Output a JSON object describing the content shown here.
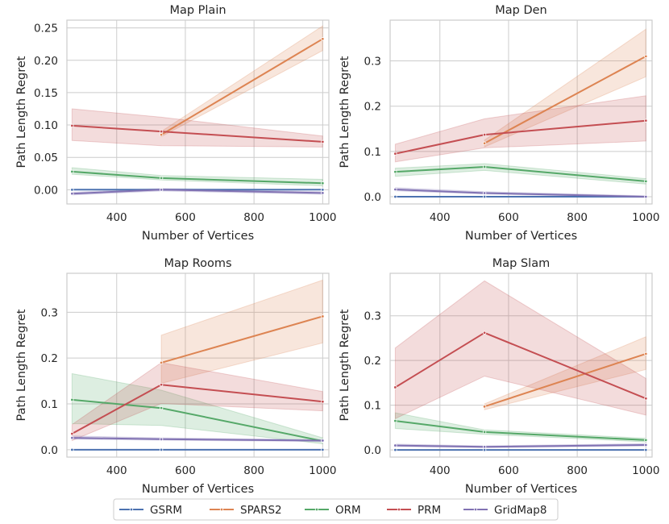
{
  "chart_data": [
    {
      "type": "line",
      "title": "Map Plain",
      "xlabel": "Number of Vertices",
      "ylabel": "Path Length Regret",
      "x": [
        270,
        530,
        1000
      ],
      "xlim": [
        255,
        1018
      ],
      "ylim": [
        -0.022,
        0.262
      ],
      "xticks": [
        400,
        600,
        800,
        1000
      ],
      "yticks": [
        0.0,
        0.05,
        0.1,
        0.15,
        0.2,
        0.25
      ],
      "ytick_labels": [
        "0.00",
        "0.05",
        "0.10",
        "0.15",
        "0.20",
        "0.25"
      ],
      "grid": true,
      "series": [
        {
          "name": "GSRM",
          "values": [
            0.0,
            0.0,
            0.0
          ],
          "lower": [
            0.0,
            0.0,
            0.0
          ],
          "upper": [
            0.0,
            0.0,
            0.0
          ]
        },
        {
          "name": "SPARS2",
          "values": [
            null,
            0.085,
            0.233
          ],
          "lower": [
            null,
            0.082,
            0.215
          ],
          "upper": [
            null,
            0.09,
            0.253
          ]
        },
        {
          "name": "ORM",
          "values": [
            0.028,
            0.018,
            0.01
          ],
          "lower": [
            0.024,
            0.015,
            0.006
          ],
          "upper": [
            0.034,
            0.022,
            0.016
          ]
        },
        {
          "name": "PRM",
          "values": [
            0.099,
            0.09,
            0.074
          ],
          "lower": [
            0.076,
            0.068,
            0.066
          ],
          "upper": [
            0.125,
            0.112,
            0.083
          ]
        },
        {
          "name": "GridMap8",
          "values": [
            -0.006,
            0.0,
            -0.005
          ],
          "lower": [
            -0.008,
            -0.002,
            -0.007
          ],
          "upper": [
            -0.004,
            0.002,
            -0.003
          ]
        }
      ]
    },
    {
      "type": "line",
      "title": "Map Den",
      "xlabel": "Number of Vertices",
      "ylabel": "Path Length Regret",
      "x": [
        270,
        530,
        1000
      ],
      "xlim": [
        255,
        1018
      ],
      "ylim": [
        -0.016,
        0.39
      ],
      "xticks": [
        400,
        600,
        800,
        1000
      ],
      "yticks": [
        0.0,
        0.1,
        0.2,
        0.3
      ],
      "ytick_labels": [
        "0.0",
        "0.1",
        "0.2",
        "0.3"
      ],
      "grid": true,
      "series": [
        {
          "name": "GSRM",
          "values": [
            0.0,
            0.0,
            0.0
          ],
          "lower": [
            0.0,
            0.0,
            0.0
          ],
          "upper": [
            0.0,
            0.0,
            0.0
          ]
        },
        {
          "name": "SPARS2",
          "values": [
            null,
            0.118,
            0.31
          ],
          "lower": [
            null,
            0.11,
            0.265
          ],
          "upper": [
            null,
            0.125,
            0.37
          ]
        },
        {
          "name": "ORM",
          "values": [
            0.055,
            0.066,
            0.034
          ],
          "lower": [
            0.045,
            0.058,
            0.028
          ],
          "upper": [
            0.063,
            0.073,
            0.04
          ]
        },
        {
          "name": "PRM",
          "values": [
            0.095,
            0.137,
            0.168
          ],
          "lower": [
            0.077,
            0.108,
            0.123
          ],
          "upper": [
            0.116,
            0.172,
            0.223
          ]
        },
        {
          "name": "GridMap8",
          "values": [
            0.016,
            0.008,
            0.0
          ],
          "lower": [
            0.013,
            0.006,
            -0.002
          ],
          "upper": [
            0.02,
            0.011,
            0.002
          ]
        }
      ]
    },
    {
      "type": "line",
      "title": "Map Rooms",
      "xlabel": "Number of Vertices",
      "ylabel": "Path Length Regret",
      "x": [
        270,
        530,
        1000
      ],
      "xlim": [
        255,
        1018
      ],
      "ylim": [
        -0.016,
        0.385
      ],
      "xticks": [
        400,
        600,
        800,
        1000
      ],
      "yticks": [
        0.0,
        0.1,
        0.2,
        0.3
      ],
      "ytick_labels": [
        "0.0",
        "0.1",
        "0.2",
        "0.3"
      ],
      "grid": true,
      "series": [
        {
          "name": "GSRM",
          "values": [
            0.0,
            0.0,
            0.0
          ],
          "lower": [
            0.0,
            0.0,
            0.0
          ],
          "upper": [
            0.0,
            0.0,
            0.0
          ]
        },
        {
          "name": "SPARS2",
          "values": [
            null,
            0.19,
            0.291
          ],
          "lower": [
            null,
            0.145,
            0.233
          ],
          "upper": [
            null,
            0.25,
            0.37
          ]
        },
        {
          "name": "ORM",
          "values": [
            0.109,
            0.091,
            0.019
          ],
          "lower": [
            0.057,
            0.053,
            0.013
          ],
          "upper": [
            0.166,
            0.13,
            0.026
          ]
        },
        {
          "name": "PRM",
          "values": [
            0.035,
            0.142,
            0.105
          ],
          "lower": [
            0.02,
            0.101,
            0.085
          ],
          "upper": [
            0.055,
            0.19,
            0.127
          ]
        },
        {
          "name": "GridMap8",
          "values": [
            0.026,
            0.023,
            0.02
          ],
          "lower": [
            0.023,
            0.021,
            0.018
          ],
          "upper": [
            0.03,
            0.026,
            0.022
          ]
        }
      ]
    },
    {
      "type": "line",
      "title": "Map Slam",
      "xlabel": "Number of Vertices",
      "ylabel": "Path Length Regret",
      "x": [
        270,
        530,
        1000
      ],
      "xlim": [
        255,
        1018
      ],
      "ylim": [
        -0.016,
        0.395
      ],
      "xticks": [
        400,
        600,
        800,
        1000
      ],
      "yticks": [
        0.0,
        0.1,
        0.2,
        0.3
      ],
      "ytick_labels": [
        "0.0",
        "0.1",
        "0.2",
        "0.3"
      ],
      "grid": true,
      "series": [
        {
          "name": "GSRM",
          "values": [
            0.0,
            0.0,
            0.0
          ],
          "lower": [
            0.0,
            0.0,
            0.0
          ],
          "upper": [
            0.0,
            0.0,
            0.0
          ]
        },
        {
          "name": "SPARS2",
          "values": [
            null,
            0.097,
            0.215
          ],
          "lower": [
            null,
            0.09,
            0.18
          ],
          "upper": [
            null,
            0.103,
            0.253
          ]
        },
        {
          "name": "ORM",
          "values": [
            0.065,
            0.04,
            0.022
          ],
          "lower": [
            0.048,
            0.035,
            0.018
          ],
          "upper": [
            0.083,
            0.045,
            0.026
          ]
        },
        {
          "name": "PRM",
          "values": [
            0.14,
            0.262,
            0.115
          ],
          "lower": [
            0.07,
            0.165,
            0.078
          ],
          "upper": [
            0.228,
            0.378,
            0.16
          ]
        },
        {
          "name": "GridMap8",
          "values": [
            0.01,
            0.007,
            0.011
          ],
          "lower": [
            0.008,
            0.005,
            0.009
          ],
          "upper": [
            0.013,
            0.009,
            0.014
          ]
        }
      ]
    }
  ],
  "legend": {
    "placement": "bottom-center",
    "items": [
      {
        "name": "GSRM",
        "color": "#4c72b0"
      },
      {
        "name": "SPARS2",
        "color": "#dd8452"
      },
      {
        "name": "ORM",
        "color": "#55a868"
      },
      {
        "name": "PRM",
        "color": "#c44e52"
      },
      {
        "name": "GridMap8",
        "color": "#8172b3"
      }
    ]
  },
  "colors": {
    "GSRM": "#4c72b0",
    "SPARS2": "#dd8452",
    "ORM": "#55a868",
    "PRM": "#c44e52",
    "GridMap8": "#8172b3",
    "grid": "#cccccc",
    "axes_edge": "#cccccc"
  }
}
